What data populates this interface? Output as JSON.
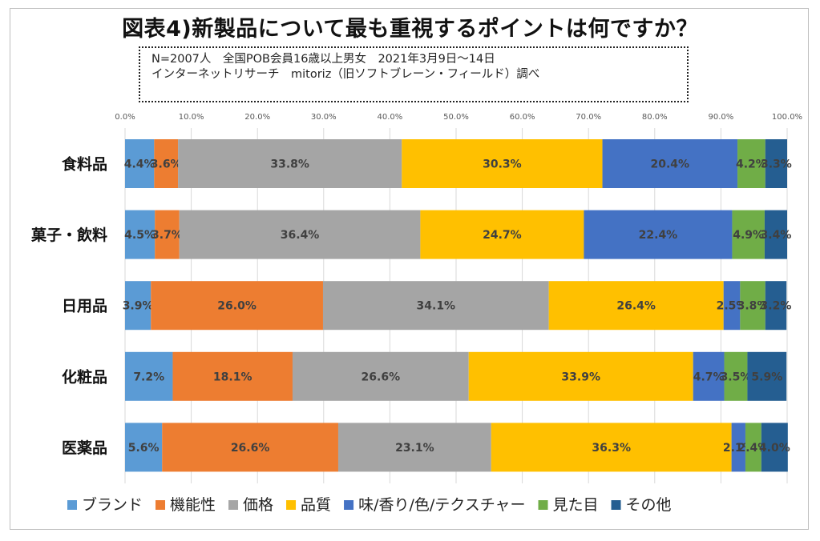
{
  "title": "図表4)新製品について最も重視するポイントは何ですか？",
  "note_lines": [
    "N=2007人　全国POB会員16歳以上男女　2021年3月9日〜14日",
    "インターネットリサーチ　mitoriz（旧ソフトブレーン・フィールド）調べ"
  ],
  "colors": [
    "#5b9bd5",
    "#ed7d31",
    "#a5a5a5",
    "#ffc000",
    "#4472c4",
    "#70ad47",
    "#255e91"
  ],
  "chart_data": {
    "type": "bar",
    "orientation": "horizontal",
    "stacked": "percent",
    "title": "図表4)新製品について最も重視するポイントは何ですか？",
    "xlim": [
      0,
      100
    ],
    "x_ticks": [
      "0.0%",
      "10.0%",
      "20.0%",
      "30.0%",
      "40.0%",
      "50.0%",
      "60.0%",
      "70.0%",
      "80.0%",
      "90.0%",
      "100.0%"
    ],
    "categories": [
      "食料品",
      "菓子・飲料",
      "日用品",
      "化粧品",
      "医薬品"
    ],
    "series": [
      {
        "name": "ブランド",
        "values": [
          4.4,
          4.5,
          3.9,
          7.2,
          5.6
        ]
      },
      {
        "name": "機能性",
        "values": [
          3.6,
          3.7,
          26.0,
          18.1,
          26.6
        ]
      },
      {
        "name": "価格",
        "values": [
          33.8,
          36.4,
          34.1,
          26.6,
          23.1
        ]
      },
      {
        "name": "品質",
        "values": [
          30.3,
          24.7,
          26.4,
          33.9,
          36.3
        ]
      },
      {
        "name": "味/香り/色/テクスチャー",
        "values": [
          20.4,
          22.4,
          2.5,
          4.7,
          2.1
        ]
      },
      {
        "name": "見た目",
        "values": [
          4.2,
          4.9,
          3.8,
          3.5,
          2.4
        ]
      },
      {
        "name": "その他",
        "values": [
          3.3,
          3.4,
          3.2,
          5.9,
          4.0
        ]
      }
    ],
    "legend_position": "bottom",
    "grid": true
  }
}
